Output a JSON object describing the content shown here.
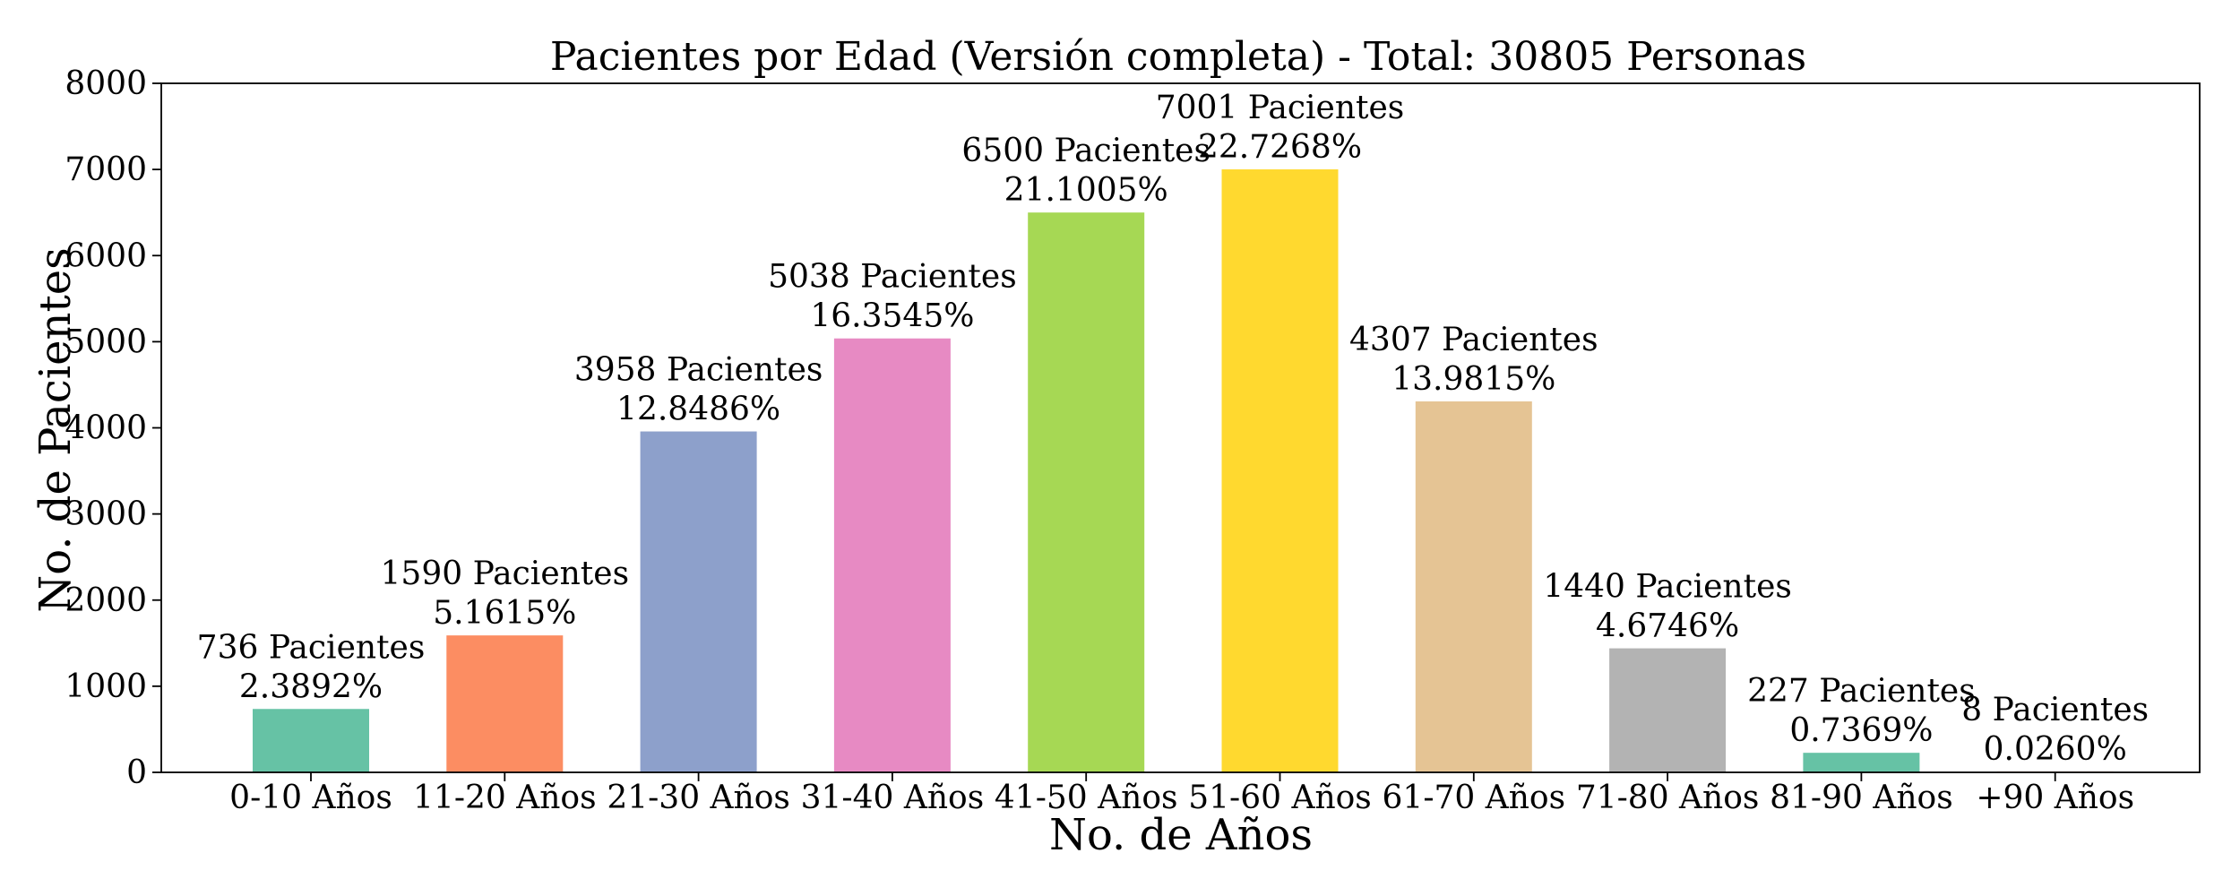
{
  "chart_data": {
    "type": "bar",
    "title": "Pacientes por Edad (Versión completa) - Total: 30805 Personas",
    "xlabel": "No. de Años",
    "ylabel": "No. de Pacientes",
    "ylim": [
      0,
      8000
    ],
    "yticks": [
      0,
      1000,
      2000,
      3000,
      4000,
      5000,
      6000,
      7000,
      8000
    ],
    "grid": false,
    "categories": [
      "0-10 Años",
      "11-20 Años",
      "21-30 Años",
      "31-40 Años",
      "41-50 Años",
      "51-60 Años",
      "61-70 Años",
      "71-80 Años",
      "81-90 Años",
      "+90 Años"
    ],
    "values": [
      736,
      1590,
      3958,
      5038,
      6500,
      7001,
      4307,
      1440,
      227,
      8
    ],
    "count_labels": [
      "736 Pacientes",
      "1590 Pacientes",
      "3958 Pacientes",
      "5038 Pacientes",
      "6500 Pacientes",
      "7001 Pacientes",
      "4307 Pacientes",
      "1440 Pacientes",
      "227 Pacientes",
      "8 Pacientes"
    ],
    "percent_labels": [
      "2.3892%",
      "5.1615%",
      "12.8486%",
      "16.3545%",
      "21.1005%",
      "22.7268%",
      "13.9815%",
      "4.6746%",
      "0.7369%",
      "0.0260%"
    ],
    "colors": [
      "#66c2a5",
      "#fc8d62",
      "#8da0cb",
      "#e78ac3",
      "#a6d854",
      "#ffd92f",
      "#e5c494",
      "#b3b3b3",
      "#66c2a5",
      "#fc8d62"
    ]
  }
}
